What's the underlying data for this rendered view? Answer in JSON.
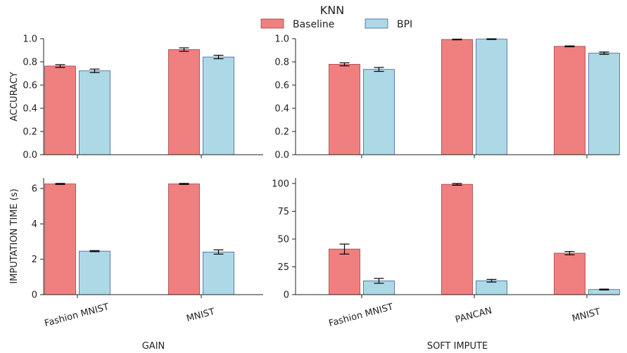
{
  "chart_data": {
    "type": "bar",
    "title": "KNN",
    "legend": {
      "placement": "top-center",
      "entries": [
        {
          "name": "Baseline",
          "color": "#f08080"
        },
        {
          "name": "BPI",
          "color": "#add8e6"
        }
      ]
    },
    "colors": {
      "baseline": "#f08080",
      "baseline_edge": "#a33d3d",
      "bpi": "#add8e6",
      "bpi_edge": "#3f5f9a"
    },
    "panels": [
      {
        "id": "gain-accuracy",
        "column": "GAIN",
        "ylabel": "ACCURACY",
        "ylim": [
          0,
          1.0
        ],
        "yticks": [
          "0.0",
          "0.2",
          "0.4",
          "0.6",
          "0.8",
          "1.0"
        ],
        "categories": [
          "Fashion MNIST",
          "MNIST"
        ],
        "show_xticklabels": false,
        "series": [
          {
            "name": "Baseline",
            "values": [
              0.764,
              0.906
            ],
            "errors": [
              0.012,
              0.015
            ]
          },
          {
            "name": "BPI",
            "values": [
              0.723,
              0.842
            ],
            "errors": [
              0.015,
              0.015
            ]
          }
        ]
      },
      {
        "id": "soft-impute-accuracy",
        "column": "SOFT IMPUTE",
        "ylabel": "",
        "ylim": [
          0,
          1.0
        ],
        "yticks": [
          "0.0",
          "0.2",
          "0.4",
          "0.6",
          "0.8",
          "1.0"
        ],
        "categories": [
          "Fashion MNIST",
          "PANCAN",
          "MNIST"
        ],
        "show_xticklabels": false,
        "series": [
          {
            "name": "Baseline",
            "values": [
              0.779,
              0.993,
              0.934
            ],
            "errors": [
              0.013,
              0.003,
              0.004
            ]
          },
          {
            "name": "BPI",
            "values": [
              0.735,
              0.996,
              0.875
            ],
            "errors": [
              0.017,
              0.003,
              0.01
            ]
          }
        ]
      },
      {
        "id": "gain-time",
        "column": "GAIN",
        "ylabel": "IMPUTATION TIME (s)",
        "xlabel": "GAIN",
        "ylim": [
          0,
          6.6
        ],
        "yticks": [
          "0",
          "2",
          "4",
          "6"
        ],
        "categories": [
          "Fashion MNIST",
          "MNIST"
        ],
        "show_xticklabels": true,
        "series": [
          {
            "name": "Baseline",
            "values": [
              6.26,
              6.26
            ],
            "errors": [
              0.03,
              0.03
            ]
          },
          {
            "name": "BPI",
            "values": [
              2.46,
              2.41
            ],
            "errors": [
              0.03,
              0.12
            ]
          }
        ]
      },
      {
        "id": "soft-impute-time",
        "column": "SOFT IMPUTE",
        "ylabel": "",
        "xlabel": "SOFT IMPUTE",
        "ylim": [
          0,
          105
        ],
        "yticks": [
          "0",
          "25",
          "50",
          "75",
          "100"
        ],
        "categories": [
          "Fashion MNIST",
          "PANCAN",
          "MNIST"
        ],
        "show_xticklabels": true,
        "series": [
          {
            "name": "Baseline",
            "values": [
              41,
              99.2,
              37.3
            ],
            "errors": [
              4.5,
              0.8,
              1.5
            ]
          },
          {
            "name": "BPI",
            "values": [
              12.4,
              12.5,
              4.6
            ],
            "errors": [
              2.2,
              1.2,
              0.4
            ]
          }
        ]
      }
    ]
  }
}
